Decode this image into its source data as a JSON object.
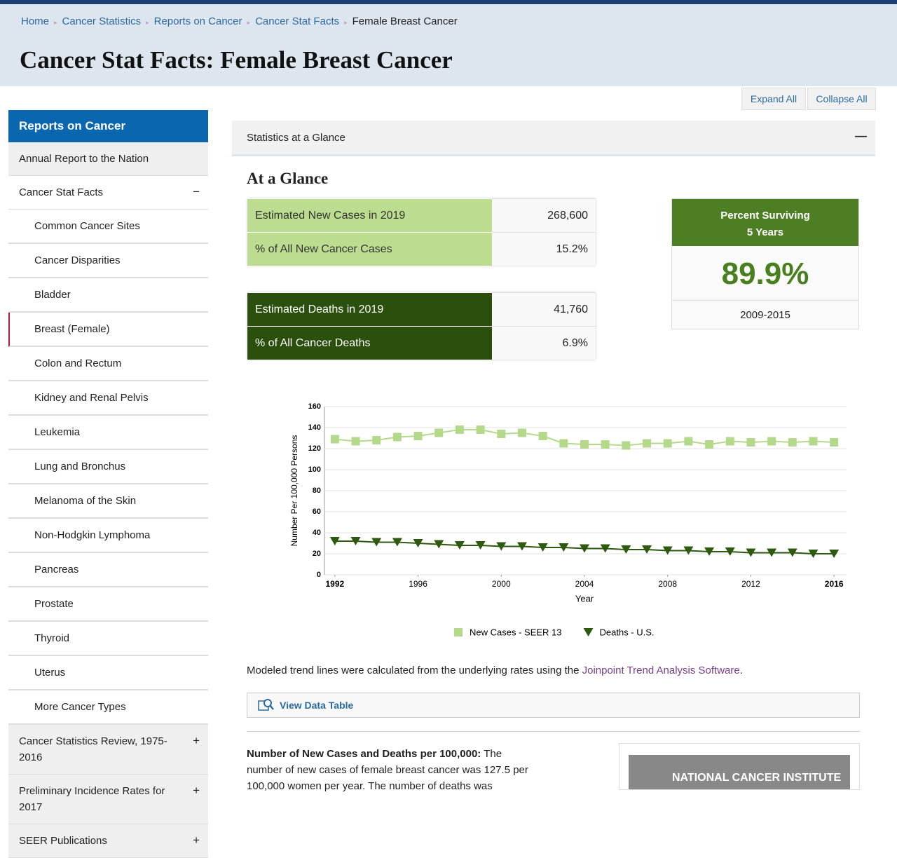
{
  "breadcrumb": [
    "Home",
    "Cancer Statistics",
    "Reports on Cancer",
    "Cancer Stat Facts",
    "Female Breast Cancer"
  ],
  "title": "Cancer Stat Facts: Female Breast Cancer",
  "buttons": [
    "Expand All",
    "Collapse All"
  ],
  "sidebar": {
    "heading": "Reports on Cancer",
    "items": [
      {
        "label": "Annual Report to the Nation"
      },
      {
        "label": "Cancer Stat Facts",
        "toggle": "−",
        "children": [
          {
            "label": "Common Cancer Sites"
          },
          {
            "label": "Cancer Disparities"
          },
          {
            "label": "Bladder"
          },
          {
            "label": "Breast (Female)",
            "active": true
          },
          {
            "label": "Colon and Rectum"
          },
          {
            "label": "Kidney and Renal Pelvis"
          },
          {
            "label": "Leukemia"
          },
          {
            "label": "Lung and Bronchus"
          },
          {
            "label": "Melanoma of the Skin"
          },
          {
            "label": "Non-Hodgkin Lymphoma"
          },
          {
            "label": "Pancreas"
          },
          {
            "label": "Prostate"
          },
          {
            "label": "Thyroid"
          },
          {
            "label": "Uterus"
          },
          {
            "label": "More Cancer Types"
          }
        ]
      },
      {
        "label": "Cancer Statistics Review, 1975-2016",
        "toggle": "+"
      },
      {
        "label": "Preliminary Incidence Rates for 2017",
        "toggle": "+"
      },
      {
        "label": "SEER Publications",
        "toggle": "+"
      }
    ]
  },
  "panel": {
    "title": "Statistics at a Glance",
    "toggle": "—"
  },
  "glance": {
    "heading": "At a Glance",
    "new_cases": [
      [
        "Estimated New Cases in 2019",
        "268,600"
      ],
      [
        "% of All New Cancer Cases",
        "15.2%"
      ]
    ],
    "deaths": [
      [
        "Estimated Deaths in 2019",
        "41,760"
      ],
      [
        "% of All Cancer Deaths",
        "6.9%"
      ]
    ],
    "survival": {
      "title": [
        "Percent Surviving",
        "5 Years"
      ],
      "value": "89.9%",
      "period": "2009-2015"
    }
  },
  "chart_data": {
    "type": "line",
    "x_label": "Year",
    "y_label": "Number Per 100,000 Persons",
    "x": [
      1992,
      1993,
      1994,
      1995,
      1996,
      1997,
      1998,
      1999,
      2000,
      2001,
      2002,
      2003,
      2004,
      2005,
      2006,
      2007,
      2008,
      2009,
      2010,
      2011,
      2012,
      2013,
      2014,
      2015,
      2016
    ],
    "series": [
      {
        "name": "New Cases - SEER 13",
        "color": "#b5d98b",
        "marker": "square",
        "values": [
          129,
          127,
          128,
          131,
          132,
          135,
          138,
          138,
          134,
          135,
          132,
          125,
          124,
          124,
          123,
          125,
          125,
          127,
          124,
          127,
          126,
          127,
          126,
          127,
          126
        ]
      },
      {
        "name": "Deaths - U.S.",
        "color": "#2d5a0f",
        "marker": "triangle",
        "values": [
          32,
          32,
          31,
          31,
          30,
          29,
          28,
          28,
          27,
          27,
          26,
          26,
          25,
          25,
          24,
          24,
          23,
          23,
          22,
          22,
          21,
          21,
          21,
          20,
          20
        ]
      }
    ],
    "xlim": [
      1991.5,
      2016.5
    ],
    "xticks": [
      1992,
      1996,
      2000,
      2004,
      2008,
      2012,
      2016
    ],
    "ylim": [
      0,
      160
    ],
    "yticks": [
      0,
      20,
      40,
      60,
      80,
      100,
      120,
      140,
      160
    ],
    "grid": true
  },
  "note": {
    "text": "Modeled trend lines were calculated from the underlying rates using the ",
    "link": "Joinpoint Trend Analysis Software",
    "end": "."
  },
  "data_table_button": "View Data Table",
  "summary": {
    "heading": "Number of New Cases and Deaths per 100,000:",
    "text": "The number of new cases of female breast cancer was 127.5 per 100,000 women per year. The number of deaths was"
  },
  "image_caption": "NATIONAL CANCER INSTITUTE"
}
